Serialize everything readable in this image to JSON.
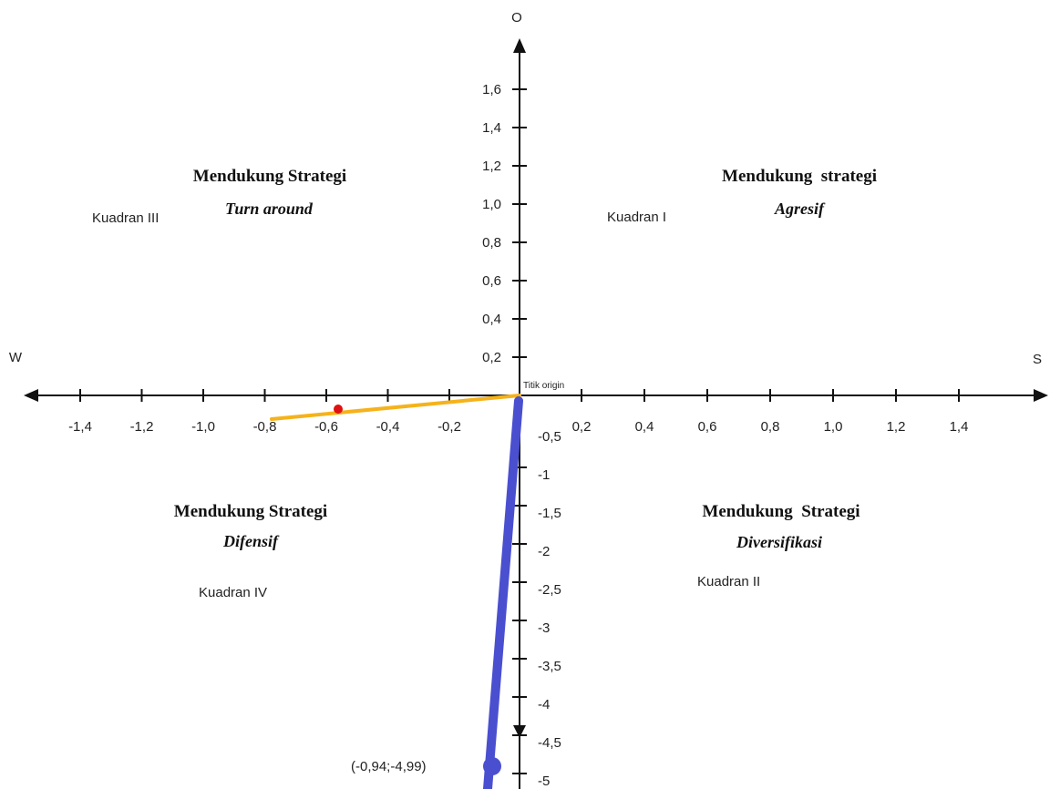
{
  "axes": {
    "top_label": "O",
    "left_label": "W",
    "right_label": "S",
    "origin_label": "Titik origin",
    "y_ticks_positive": [
      "1,6",
      "1,4",
      "1,2",
      "1,0",
      "0,8",
      "0,6",
      "0,4",
      "0,2"
    ],
    "y_ticks_negative": [
      "-0,5",
      "-1",
      "-1,5",
      "-2",
      "-2,5",
      "-3",
      "-3,5",
      "-4",
      "-4,5",
      "-5"
    ],
    "x_ticks_negative": [
      "-1,4",
      "-1,2",
      "-1,0",
      "-0,8",
      "-0,6",
      "-0,4",
      "-0,2"
    ],
    "x_ticks_positive": [
      "0,2",
      "0,4",
      "0,6",
      "0,8",
      "1,0",
      "1,2",
      "1,4"
    ]
  },
  "quadrants": {
    "q1": {
      "title": "Mendukung  strategi",
      "strategy": "Agresif",
      "label": "Kuadran I"
    },
    "q2": {
      "title": "Mendukung  Strategi",
      "strategy": "Diversifikasi",
      "label": "Kuadran II"
    },
    "q3": {
      "title": "Mendukung Strategi",
      "strategy": "Turn around",
      "label": "Kuadran III"
    },
    "q4": {
      "title": "Mendukung Strategi",
      "strategy": "Difensif",
      "label": "Kuadran IV"
    }
  },
  "result_point": {
    "label": "(-0,94;-4,99)",
    "x": -0.94,
    "y": -4.99
  },
  "marker_point": {
    "x": -0.57,
    "y": 0
  },
  "colors": {
    "axis": "#111111",
    "result_vector": "#4a4fd0",
    "orange_line": "#f5b21a",
    "marker": "#e01010"
  }
}
